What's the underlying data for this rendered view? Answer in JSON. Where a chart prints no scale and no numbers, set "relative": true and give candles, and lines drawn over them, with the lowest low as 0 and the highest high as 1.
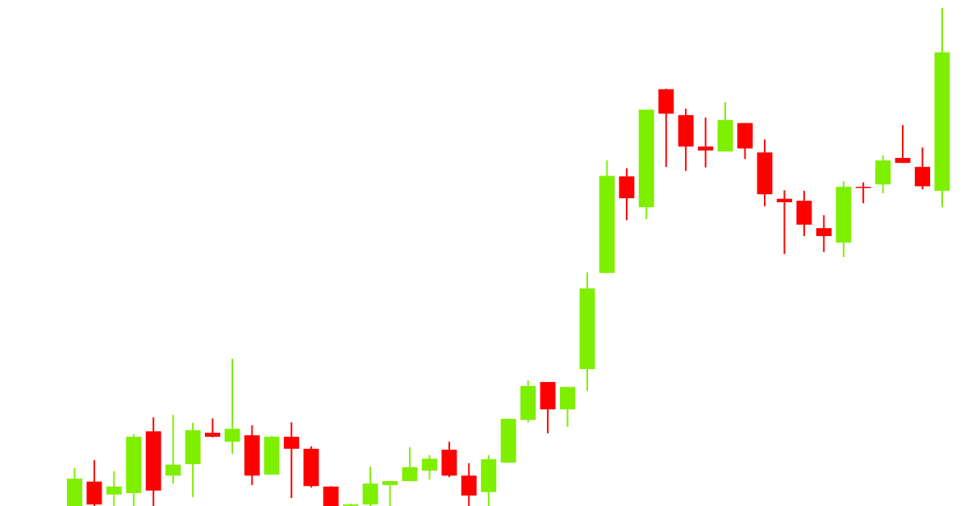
{
  "chart_data": {
    "type": "candlestick",
    "relative": true,
    "categories": [
      null,
      null,
      null,
      null,
      null,
      null,
      null,
      null,
      null,
      null,
      null,
      null,
      null,
      null,
      null,
      null,
      null,
      null,
      null,
      null,
      null,
      null,
      null,
      null,
      null,
      null,
      null,
      null,
      null,
      null,
      null,
      null,
      null,
      null,
      null,
      null,
      null,
      null,
      null,
      null,
      null,
      null,
      null,
      null,
      null
    ],
    "ohlc": [
      [
        0,
        0.076,
        0,
        0.055
      ],
      [
        0.049,
        0.092,
        0,
        0.003
      ],
      [
        0.023,
        0.07,
        0,
        0.039
      ],
      [
        0.026,
        0.144,
        0,
        0.139
      ],
      [
        0.15,
        0.178,
        0,
        0.031
      ],
      [
        0.061,
        0.183,
        0.045,
        0.083
      ],
      [
        0.084,
        0.167,
        0.018,
        0.152
      ],
      [
        0.147,
        0.176,
        0.138,
        0.139
      ],
      [
        0.129,
        0.296,
        0.105,
        0.155
      ],
      [
        0.142,
        0.162,
        0.042,
        0.061
      ],
      [
        0.063,
        0.141,
        0.063,
        0.139
      ],
      [
        0.139,
        0.168,
        0.016,
        0.115
      ],
      [
        0.115,
        0.12,
        0.037,
        0.04
      ],
      [
        0.039,
        0.04,
        0,
        0
      ],
      [
        0,
        0.005,
        0,
        0.003
      ],
      [
        0.003,
        0.079,
        0,
        0.045
      ],
      [
        0.042,
        0.05,
        0,
        0.05
      ],
      [
        0.05,
        0.118,
        0.05,
        0.078
      ],
      [
        0.071,
        0.102,
        0.053,
        0.095
      ],
      [
        0.113,
        0.129,
        0.058,
        0.061
      ],
      [
        0.061,
        0.086,
        0,
        0.021
      ],
      [
        0.028,
        0.102,
        0,
        0.094
      ],
      [
        0.087,
        0.175,
        0.087,
        0.175
      ],
      [
        0.173,
        0.252,
        0.168,
        0.241
      ],
      [
        0.249,
        0.249,
        0.146,
        0.194
      ],
      [
        0.194,
        0.239,
        0.159,
        0.239
      ],
      [
        0.275,
        0.469,
        0.231,
        0.437
      ],
      [
        0.468,
        0.694,
        0.468,
        0.663
      ],
      [
        0.662,
        0.678,
        0.574,
        0.618
      ],
      [
        0.6,
        0.796,
        0.576,
        0.796
      ],
      [
        0.837,
        0.838,
        0.681,
        0.788
      ],
      [
        0.785,
        0.798,
        0.673,
        0.722
      ],
      [
        0.722,
        0.78,
        0.68,
        0.714
      ],
      [
        0.712,
        0.811,
        0.712,
        0.775
      ],
      [
        0.769,
        0.769,
        0.697,
        0.718
      ],
      [
        0.71,
        0.736,
        0.602,
        0.626
      ],
      [
        0.617,
        0.634,
        0.506,
        0.61
      ],
      [
        0.613,
        0.633,
        0.542,
        0.565
      ],
      [
        0.558,
        0.584,
        0.51,
        0.542
      ],
      [
        0.529,
        0.652,
        0.5,
        0.641
      ],
      [
        0.641,
        0.65,
        0.608,
        0.639
      ],
      [
        0.646,
        0.704,
        0.628,
        0.694
      ],
      [
        0.699,
        0.765,
        0.689,
        0.689
      ],
      [
        0.681,
        0.72,
        0.636,
        0.642
      ],
      [
        0.633,
        1,
        0.6,
        0.911
      ]
    ],
    "colors": [
      "#7fef00",
      "#ff0000",
      "#7fef00",
      "#7fef00",
      "#ff0000",
      "#7fef00",
      "#7fef00",
      "#ff0000",
      "#7fef00",
      "#ff0000",
      "#7fef00",
      "#ff0000",
      "#ff0000",
      "#ff0000",
      "#7fef00",
      "#7fef00",
      "#7fef00",
      "#7fef00",
      "#7fef00",
      "#ff0000",
      "#ff0000",
      "#7fef00",
      "#7fef00",
      "#7fef00",
      "#ff0000",
      "#7fef00",
      "#7fef00",
      "#7fef00",
      "#ff0000",
      "#7fef00",
      "#ff0000",
      "#ff0000",
      "#ff0000",
      "#7fef00",
      "#ff0000",
      "#ff0000",
      "#ff0000",
      "#ff0000",
      "#ff0000",
      "#7fef00",
      "#ff0000",
      "#7fef00",
      "#ff0000",
      "#ff0000",
      "#7fef00"
    ]
  }
}
